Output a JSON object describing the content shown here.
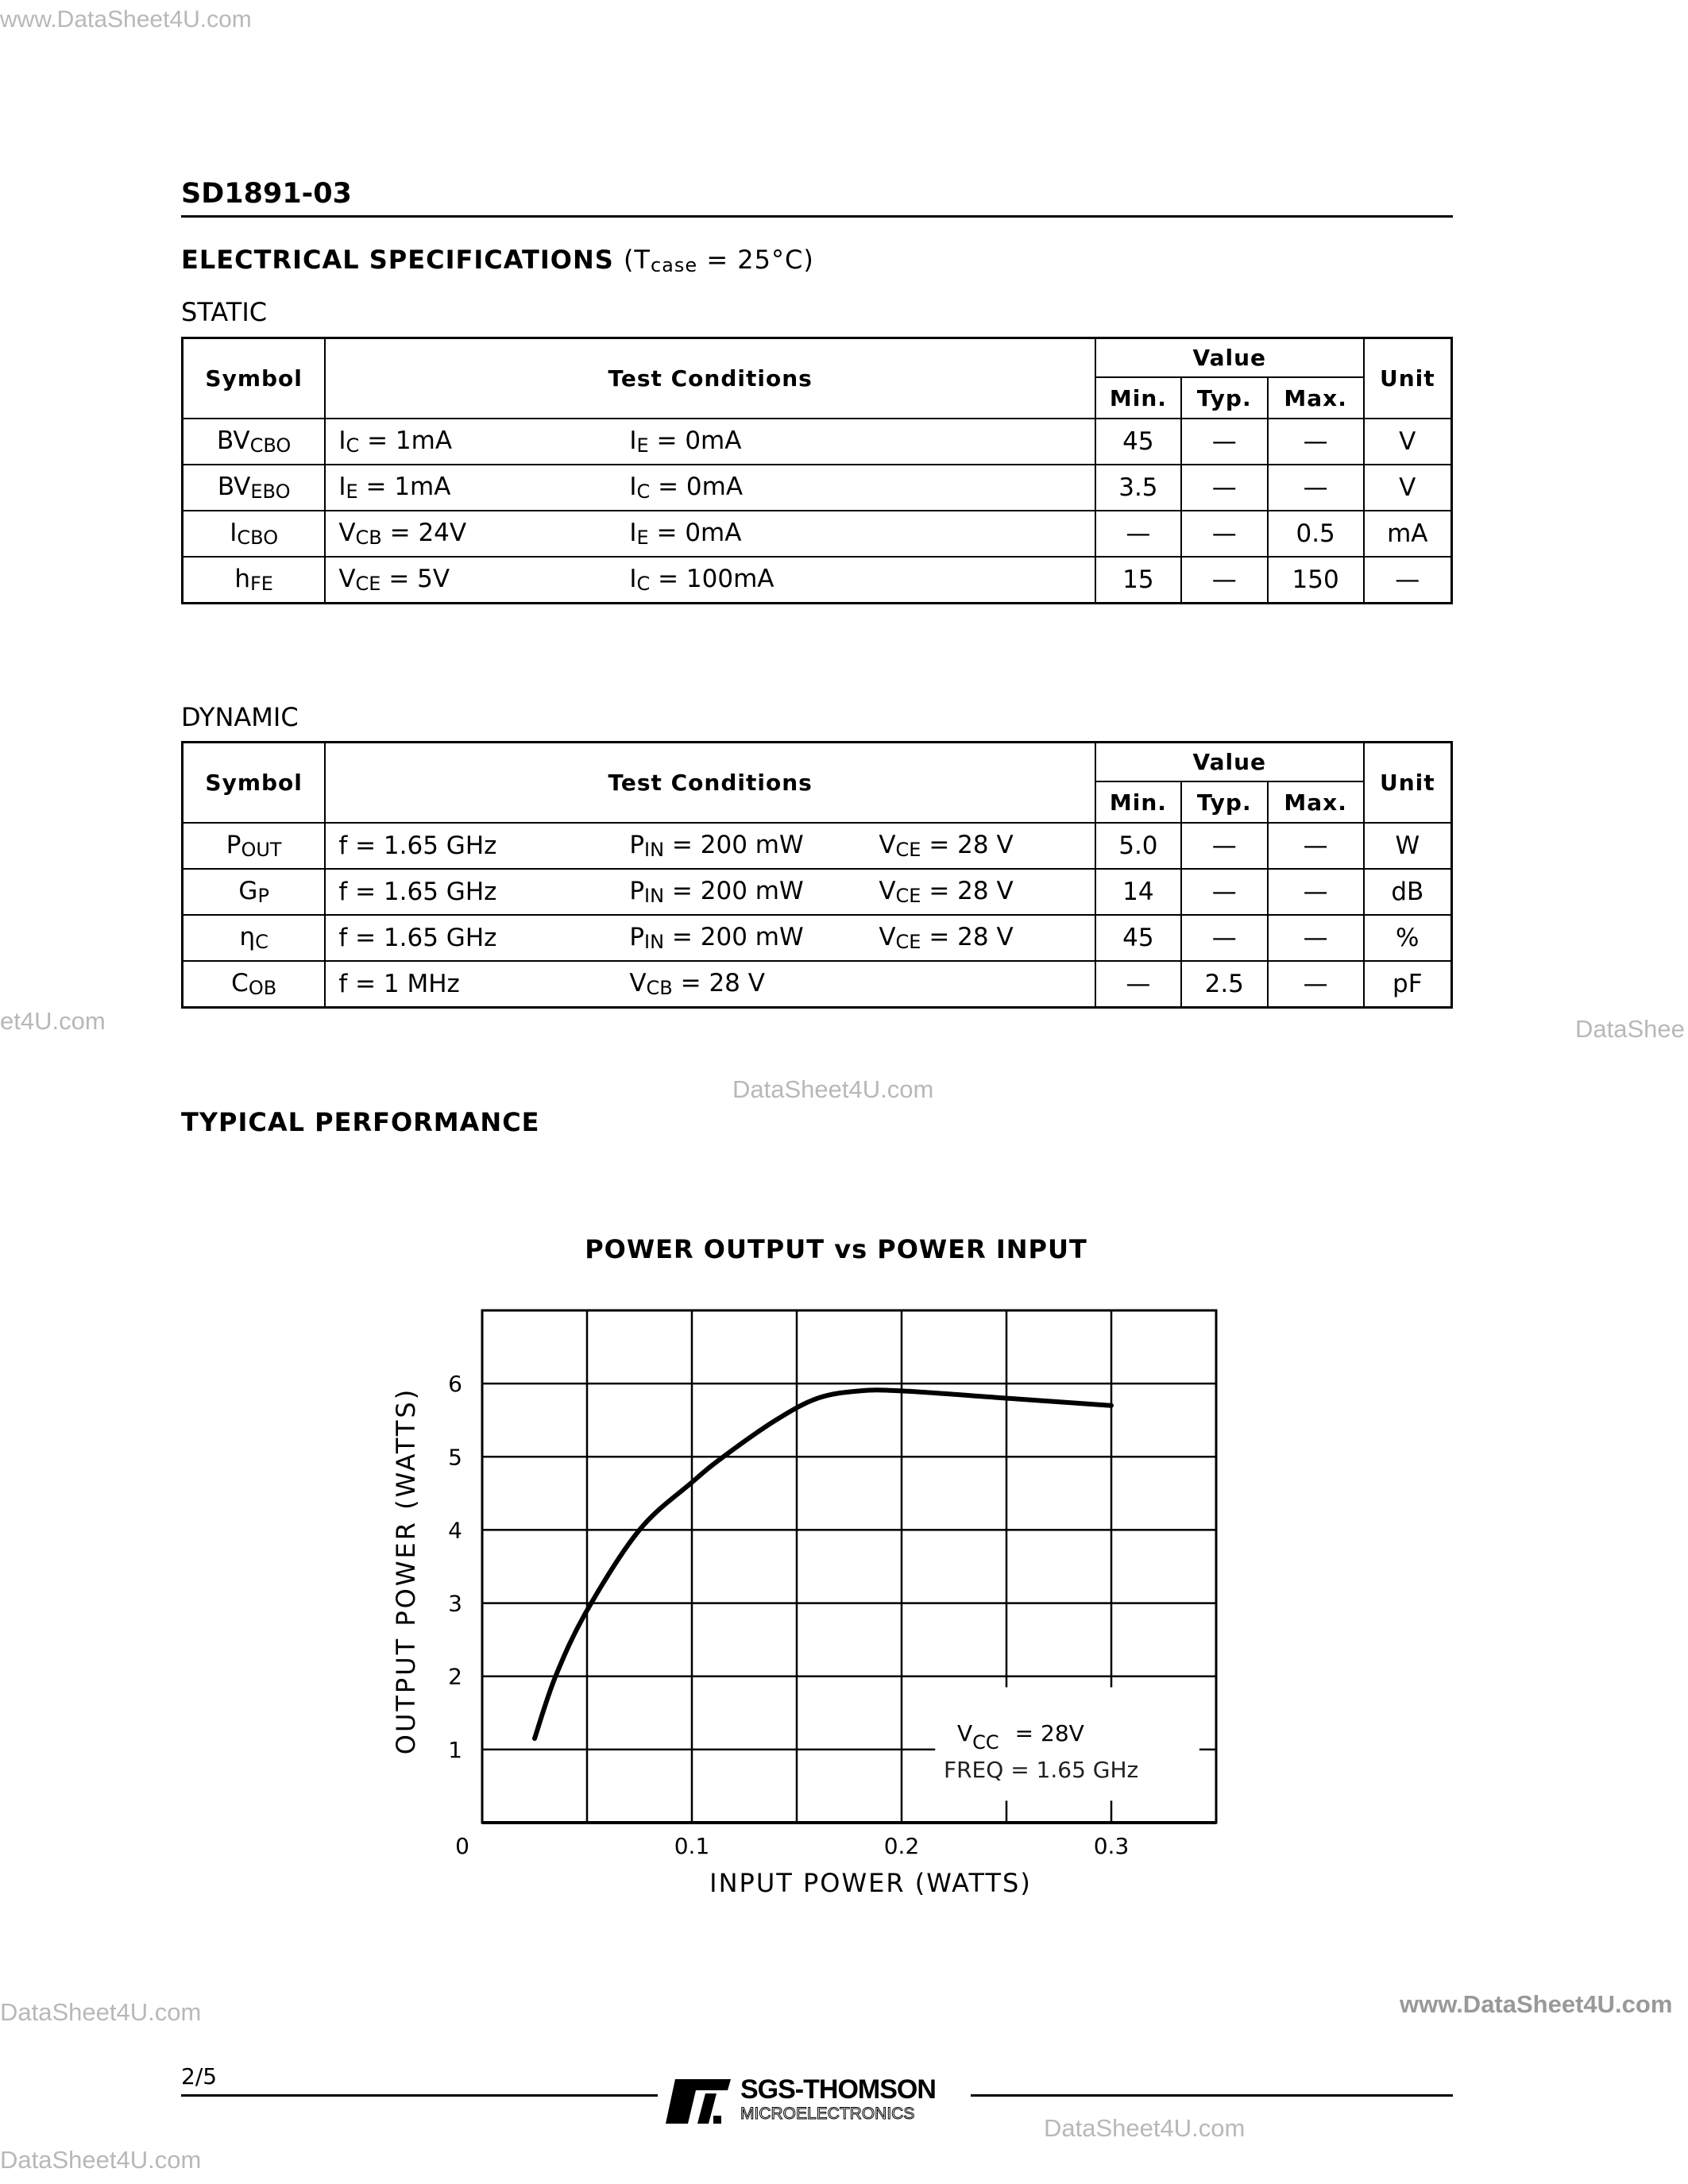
{
  "watermarks": {
    "top_left": "www.DataSheet4U.com",
    "left_mid": "et4U.com",
    "right_mid": "DataShee",
    "center_mid": "DataSheet4U.com",
    "bottom_left": "DataSheet4U.com",
    "bottom_right": "www.DataSheet4U.com",
    "footer_right": "DataSheet4U.com",
    "footer_left": "DataSheet4U.com"
  },
  "header": {
    "part_number": "SD1891-03"
  },
  "specs": {
    "title": "ELECTRICAL SPECIFICATIONS",
    "condition": "(T",
    "condition_sub": "case",
    "condition_rest": " = 25°C)"
  },
  "table_headers": {
    "symbol": "Symbol",
    "test_conditions": "Test Conditions",
    "value": "Value",
    "min": "Min.",
    "typ": "Typ.",
    "max": "Max.",
    "unit": "Unit"
  },
  "static": {
    "label": "STATIC",
    "rows": [
      {
        "sym": "BV",
        "sym_sub": "CBO",
        "c": [
          {
            "m": "I",
            "s": "C",
            "r": " = 1mA"
          },
          {
            "m": "I",
            "s": "E",
            "r": " = 0mA"
          }
        ],
        "min": "45",
        "typ": "—",
        "max": "—",
        "unit": "V"
      },
      {
        "sym": "BV",
        "sym_sub": "EBO",
        "c": [
          {
            "m": "I",
            "s": "E",
            "r": " = 1mA"
          },
          {
            "m": "I",
            "s": "C",
            "r": " = 0mA"
          }
        ],
        "min": "3.5",
        "typ": "—",
        "max": "—",
        "unit": "V"
      },
      {
        "sym": "I",
        "sym_sub": "CBO",
        "c": [
          {
            "m": "V",
            "s": "CB",
            "r": " = 24V"
          },
          {
            "m": "I",
            "s": "E",
            "r": " = 0mA"
          }
        ],
        "min": "—",
        "typ": "—",
        "max": "0.5",
        "unit": "mA"
      },
      {
        "sym": "h",
        "sym_sub": "FE",
        "c": [
          {
            "m": "V",
            "s": "CE",
            "r": " = 5V"
          },
          {
            "m": "I",
            "s": "C",
            "r": " = 100mA"
          }
        ],
        "min": "15",
        "typ": "—",
        "max": "150",
        "unit": "—"
      }
    ]
  },
  "dynamic": {
    "label": "DYNAMIC",
    "rows": [
      {
        "sym": "P",
        "sym_sub": "OUT",
        "c": [
          {
            "m": "f = 1.65 GHz",
            "s": "",
            "r": ""
          },
          {
            "m": "P",
            "s": "IN",
            "r": " = 200 mW"
          },
          {
            "m": "V",
            "s": "CE",
            "r": " = 28  V"
          }
        ],
        "min": "5.0",
        "typ": "—",
        "max": "—",
        "unit": "W"
      },
      {
        "sym": "G",
        "sym_sub": "P",
        "c": [
          {
            "m": "f = 1.65 GHz",
            "s": "",
            "r": ""
          },
          {
            "m": "P",
            "s": "IN",
            "r": " = 200 mW"
          },
          {
            "m": "V",
            "s": "CE",
            "r": " = 28  V"
          }
        ],
        "min": "14",
        "typ": "—",
        "max": "—",
        "unit": "dB"
      },
      {
        "sym": "η",
        "sym_sub": "C",
        "c": [
          {
            "m": "f = 1.65 GHz",
            "s": "",
            "r": ""
          },
          {
            "m": "P",
            "s": "IN",
            "r": " = 200 mW"
          },
          {
            "m": "V",
            "s": "CE",
            "r": " = 28  V"
          }
        ],
        "min": "45",
        "typ": "—",
        "max": "—",
        "unit": "%"
      },
      {
        "sym": "C",
        "sym_sub": "OB",
        "c": [
          {
            "m": "f = 1 MHz",
            "s": "",
            "r": ""
          },
          {
            "m": "V",
            "s": "CB",
            "r": " = 28  V"
          }
        ],
        "min": "—",
        "typ": "2.5",
        "max": "—",
        "unit": "pF"
      }
    ]
  },
  "typical_performance": "TYPICAL PERFORMANCE",
  "chart_data": {
    "type": "line",
    "title": "POWER OUTPUT vs POWER INPUT",
    "xlabel": "INPUT POWER (WATTS)",
    "ylabel": "OUTPUT POWER (WATTS)",
    "xlim": [
      0,
      0.35
    ],
    "ylim": [
      0,
      7
    ],
    "grid": true,
    "x_ticks": [
      0,
      0.1,
      0.2,
      0.3
    ],
    "x_tick_labels": [
      "0",
      "0.1",
      "0.2",
      "0.3"
    ],
    "y_ticks": [
      1,
      2,
      3,
      4,
      5,
      6
    ],
    "y_tick_labels": [
      "1",
      "2",
      "3",
      "4",
      "5",
      "6"
    ],
    "x": [
      0.025,
      0.035,
      0.05,
      0.075,
      0.1,
      0.115,
      0.14,
      0.16,
      0.18,
      0.2,
      0.25,
      0.3
    ],
    "y": [
      1.15,
      2.0,
      2.9,
      4.0,
      4.65,
      5.0,
      5.5,
      5.8,
      5.9,
      5.9,
      5.8,
      5.7
    ],
    "annotation": {
      "vcc_label": "V",
      "vcc_sub": "CC",
      "vcc_value": "=  28V",
      "freq": "FREQ  =  1.65  GHz"
    }
  },
  "footer": {
    "page": "2/5",
    "logo_top": "SGS-THOMSON",
    "logo_bottom": "MICROELECTRONICS"
  }
}
